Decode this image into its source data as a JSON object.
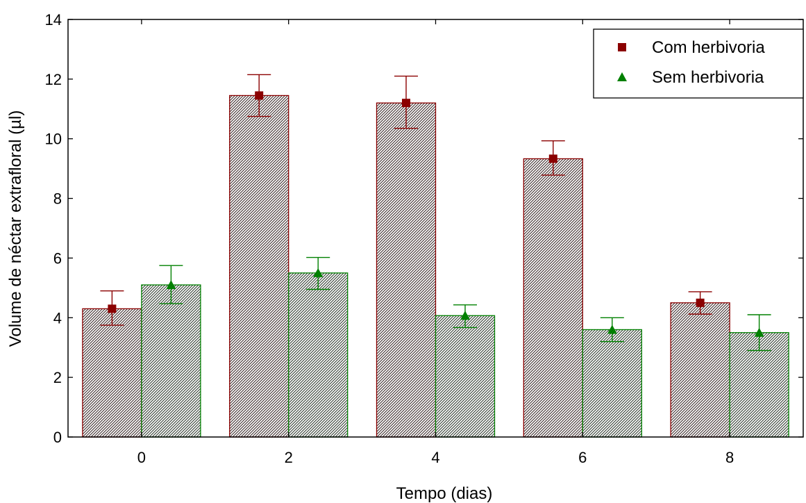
{
  "chart_data": {
    "type": "bar",
    "xlabel": "Tempo (dias)",
    "ylabel": "Volume de néctar extrafloral (µl)",
    "categories": [
      "0",
      "2",
      "4",
      "6",
      "8"
    ],
    "ylim": [
      0,
      14
    ],
    "yticks": [
      "0",
      "2",
      "4",
      "6",
      "8",
      "10",
      "12",
      "14"
    ],
    "legend_position": "top-right",
    "grid": false,
    "series": [
      {
        "name": "Com herbivoria",
        "marker": "square",
        "color": "#8b0000",
        "values": [
          4.3,
          11.45,
          11.2,
          9.33,
          4.5
        ],
        "error_upper": [
          4.9,
          12.15,
          12.1,
          9.93,
          4.87
        ],
        "error_lower": [
          3.75,
          10.75,
          10.35,
          8.78,
          4.12
        ]
      },
      {
        "name": "Sem herbivoria",
        "marker": "triangle",
        "color": "#008000",
        "values": [
          5.1,
          5.5,
          4.07,
          3.6,
          3.5
        ],
        "error_upper": [
          5.75,
          6.02,
          4.43,
          4.0,
          4.1
        ],
        "error_lower": [
          4.47,
          4.95,
          3.67,
          3.2,
          2.9
        ]
      }
    ]
  }
}
